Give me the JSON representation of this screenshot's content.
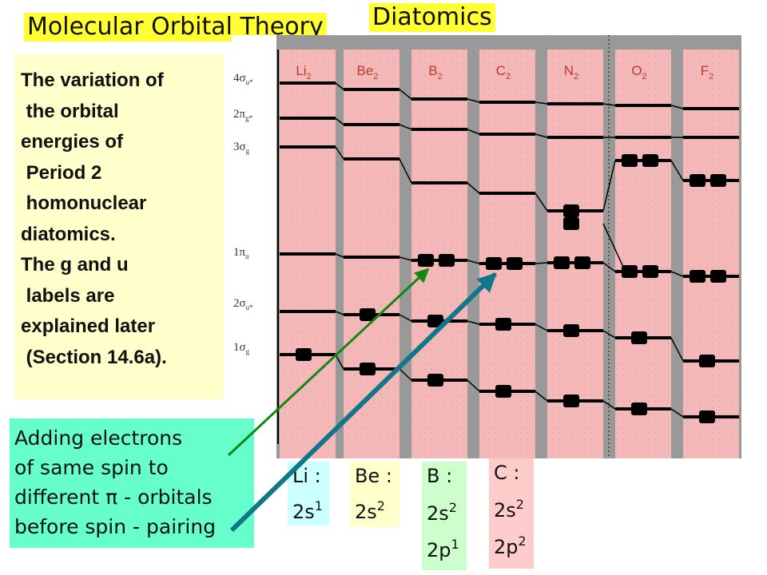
{
  "title": "Molecular Orbital Theory",
  "subtitle": "Diatomics",
  "description": "The variation of\n the orbital\nenergies of\n Period 2\n homonuclear\ndiatomics.\nThe g and u\n labels are\nexplained later\n (Section 14.6a).",
  "note": "Adding electrons\nof same spin to\ndifferent π - orbitals\nbefore spin - pairing",
  "diagram": {
    "molecules": [
      {
        "id": "li2",
        "name": "Li",
        "sub": "2"
      },
      {
        "id": "be2",
        "name": "Be",
        "sub": "2"
      },
      {
        "id": "b2",
        "name": "B",
        "sub": "2"
      },
      {
        "id": "c2",
        "name": "C",
        "sub": "2"
      },
      {
        "id": "n2",
        "name": "N",
        "sub": "2"
      },
      {
        "id": "o2",
        "name": "O",
        "sub": "2"
      },
      {
        "id": "f2",
        "name": "F",
        "sub": "2"
      }
    ],
    "orbital_labels": [
      {
        "id": "4su",
        "sym": "4σ",
        "sub": "u*"
      },
      {
        "id": "2pg",
        "sym": "2π",
        "sub": "g*"
      },
      {
        "id": "3sg",
        "sym": "3σ",
        "sub": "g"
      },
      {
        "id": "1pu",
        "sym": "1π",
        "sub": "u"
      },
      {
        "id": "2su",
        "sym": "2σ",
        "sub": "u*"
      },
      {
        "id": "1sg",
        "sym": "1σ",
        "sub": "g"
      }
    ],
    "colors": {
      "background": "#999999",
      "column": "#f5b8b8",
      "line": "#000000"
    }
  },
  "configs": [
    {
      "id": "li",
      "label": "Li :",
      "lines": [
        {
          "base": "2s",
          "sup": "1"
        }
      ],
      "color": "#ccffff"
    },
    {
      "id": "be",
      "label": "Be :",
      "lines": [
        {
          "base": "2s",
          "sup": "2"
        }
      ],
      "color": "#ffffcc"
    },
    {
      "id": "b",
      "label": "B :",
      "lines": [
        {
          "base": "2s",
          "sup": "2"
        },
        {
          "base": "2p",
          "sup": "1"
        }
      ],
      "color": "#ccffcc"
    },
    {
      "id": "c",
      "label": "C :",
      "lines": [
        {
          "base": "2s",
          "sup": "2"
        },
        {
          "base": "2p",
          "sup": "2"
        }
      ],
      "color": "#ffcccc"
    }
  ]
}
